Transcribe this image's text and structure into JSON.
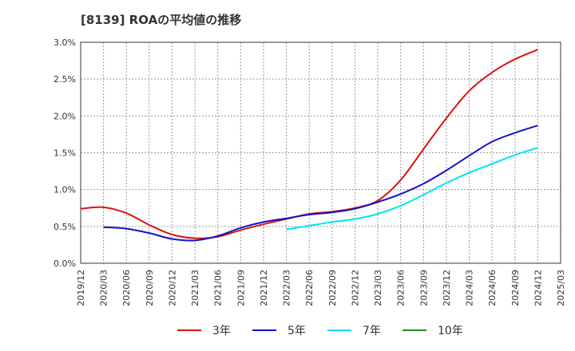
{
  "chart_data": {
    "type": "line",
    "title": "[8139]  ROAの平均値の推移",
    "xlabel": "",
    "ylabel": "",
    "ylim": [
      0,
      3.0
    ],
    "y_ticks": [
      "0.0%",
      "0.5%",
      "1.0%",
      "1.5%",
      "2.0%",
      "2.5%",
      "3.0%"
    ],
    "x_ticks": [
      "2019/12",
      "2020/03",
      "2020/06",
      "2020/09",
      "2020/12",
      "2021/03",
      "2021/06",
      "2021/09",
      "2021/12",
      "2022/03",
      "2022/06",
      "2022/09",
      "2022/12",
      "2023/03",
      "2023/06",
      "2023/09",
      "2023/12",
      "2024/03",
      "2024/06",
      "2024/09",
      "2024/12",
      "2025/03"
    ],
    "grid": true,
    "legend_position": "bottom",
    "series": [
      {
        "name": "3年",
        "color": "#dd1111",
        "x": [
          "2019/12",
          "2020/03",
          "2020/06",
          "2020/09",
          "2020/12",
          "2021/03",
          "2021/06",
          "2021/09",
          "2021/12",
          "2022/03",
          "2022/06",
          "2022/09",
          "2022/12",
          "2023/03",
          "2023/06",
          "2023/09",
          "2023/12",
          "2024/03",
          "2024/06",
          "2024/09",
          "2024/12"
        ],
        "values": [
          0.74,
          0.76,
          0.68,
          0.52,
          0.39,
          0.34,
          0.36,
          0.45,
          0.53,
          0.6,
          0.67,
          0.7,
          0.75,
          0.85,
          1.13,
          1.55,
          1.97,
          2.34,
          2.59,
          2.77,
          2.9
        ]
      },
      {
        "name": "5年",
        "color": "#1111cc",
        "x": [
          "2020/03",
          "2020/06",
          "2020/09",
          "2020/12",
          "2021/03",
          "2021/06",
          "2021/09",
          "2021/12",
          "2022/03",
          "2022/06",
          "2022/09",
          "2022/12",
          "2023/03",
          "2023/06",
          "2023/09",
          "2023/12",
          "2024/03",
          "2024/06",
          "2024/09",
          "2024/12"
        ],
        "values": [
          0.49,
          0.47,
          0.41,
          0.33,
          0.31,
          0.37,
          0.48,
          0.56,
          0.61,
          0.66,
          0.69,
          0.74,
          0.83,
          0.94,
          1.08,
          1.26,
          1.46,
          1.65,
          1.77,
          1.87
        ]
      },
      {
        "name": "7年",
        "color": "#00e5ee",
        "x": [
          "2022/03",
          "2022/06",
          "2022/09",
          "2022/12",
          "2023/03",
          "2023/06",
          "2023/09",
          "2023/12",
          "2024/03",
          "2024/06",
          "2024/09",
          "2024/12"
        ],
        "values": [
          0.46,
          0.51,
          0.56,
          0.6,
          0.67,
          0.78,
          0.93,
          1.09,
          1.23,
          1.35,
          1.47,
          1.57
        ]
      },
      {
        "name": "10年",
        "color": "#228b22",
        "x": [],
        "values": []
      }
    ]
  }
}
